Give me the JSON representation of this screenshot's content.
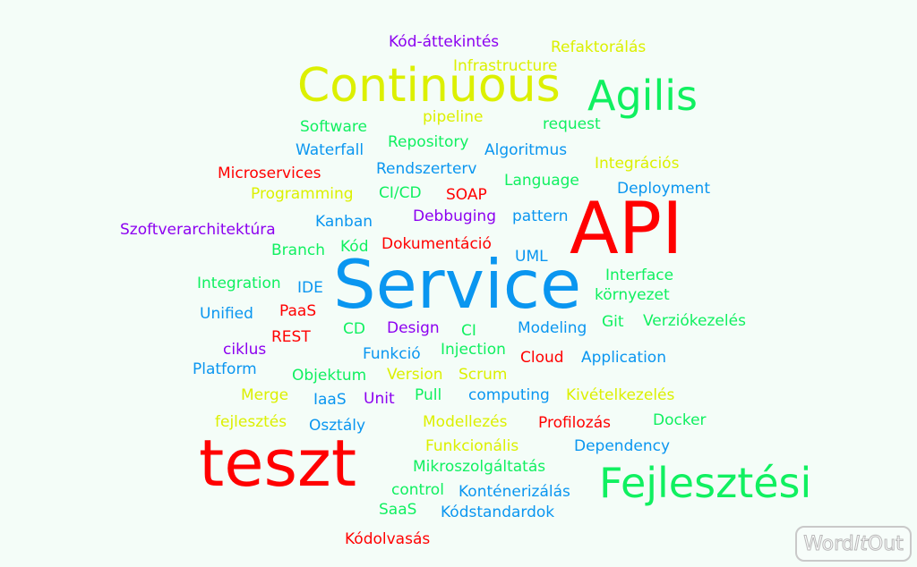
{
  "colors": {
    "red": "#ff0000",
    "blue": "#0a96f0",
    "green": "#10f060",
    "yellow": "#dcf000",
    "purple": "#8c00f0"
  },
  "words": [
    {
      "text": "Kód-áttekintés",
      "color": "purple"
    },
    {
      "text": "Refaktorálás",
      "color": "yellow"
    },
    {
      "text": "Infrastructure",
      "color": "yellow"
    },
    {
      "text": "Continuous",
      "color": "yellow"
    },
    {
      "text": "Agilis",
      "color": "green"
    },
    {
      "text": "pipeline",
      "color": "yellow"
    },
    {
      "text": "Software",
      "color": "green"
    },
    {
      "text": "request",
      "color": "green"
    },
    {
      "text": "Repository",
      "color": "green"
    },
    {
      "text": "Waterfall",
      "color": "blue"
    },
    {
      "text": "Algoritmus",
      "color": "blue"
    },
    {
      "text": "Integrációs",
      "color": "yellow"
    },
    {
      "text": "Microservices",
      "color": "red"
    },
    {
      "text": "Rendszerterv",
      "color": "blue"
    },
    {
      "text": "Language",
      "color": "green"
    },
    {
      "text": "Deployment",
      "color": "blue"
    },
    {
      "text": "Programming",
      "color": "yellow"
    },
    {
      "text": "CI/CD",
      "color": "green"
    },
    {
      "text": "SOAP",
      "color": "red"
    },
    {
      "text": "API",
      "color": "red"
    },
    {
      "text": "Kanban",
      "color": "blue"
    },
    {
      "text": "Debbuging",
      "color": "purple"
    },
    {
      "text": "pattern",
      "color": "blue"
    },
    {
      "text": "Szoftverarchitektúra",
      "color": "purple"
    },
    {
      "text": "Branch",
      "color": "green"
    },
    {
      "text": "Kód",
      "color": "green"
    },
    {
      "text": "Dokumentáció",
      "color": "red"
    },
    {
      "text": "UML",
      "color": "blue"
    },
    {
      "text": "Service",
      "color": "blue"
    },
    {
      "text": "Interface",
      "color": "green"
    },
    {
      "text": "Integration",
      "color": "green"
    },
    {
      "text": "IDE",
      "color": "blue"
    },
    {
      "text": "környezet",
      "color": "green"
    },
    {
      "text": "Unified",
      "color": "blue"
    },
    {
      "text": "PaaS",
      "color": "red"
    },
    {
      "text": "Git",
      "color": "green"
    },
    {
      "text": "Verziókezelés",
      "color": "green"
    },
    {
      "text": "CD",
      "color": "green"
    },
    {
      "text": "Design",
      "color": "purple"
    },
    {
      "text": "CI",
      "color": "green"
    },
    {
      "text": "Modeling",
      "color": "blue"
    },
    {
      "text": "REST",
      "color": "red"
    },
    {
      "text": "ciklus",
      "color": "purple"
    },
    {
      "text": "Injection",
      "color": "green"
    },
    {
      "text": "Funkció",
      "color": "blue"
    },
    {
      "text": "Cloud",
      "color": "red"
    },
    {
      "text": "Application",
      "color": "blue"
    },
    {
      "text": "Platform",
      "color": "blue"
    },
    {
      "text": "Objektum",
      "color": "green"
    },
    {
      "text": "Version",
      "color": "yellow"
    },
    {
      "text": "Scrum",
      "color": "yellow"
    },
    {
      "text": "Merge",
      "color": "yellow"
    },
    {
      "text": "IaaS",
      "color": "blue"
    },
    {
      "text": "Unit",
      "color": "purple"
    },
    {
      "text": "Pull",
      "color": "green"
    },
    {
      "text": "computing",
      "color": "blue"
    },
    {
      "text": "Kivételkezelés",
      "color": "yellow"
    },
    {
      "text": "fejlesztés",
      "color": "yellow"
    },
    {
      "text": "Osztály",
      "color": "blue"
    },
    {
      "text": "Modellezés",
      "color": "yellow"
    },
    {
      "text": "Profilozás",
      "color": "red"
    },
    {
      "text": "Docker",
      "color": "green"
    },
    {
      "text": "teszt",
      "color": "red"
    },
    {
      "text": "Funkcionális",
      "color": "yellow"
    },
    {
      "text": "Dependency",
      "color": "blue"
    },
    {
      "text": "Mikroszolgáltatás",
      "color": "green"
    },
    {
      "text": "Fejlesztési",
      "color": "green"
    },
    {
      "text": "control",
      "color": "green"
    },
    {
      "text": "Konténerizálás",
      "color": "blue"
    },
    {
      "text": "SaaS",
      "color": "green"
    },
    {
      "text": "Kódstandardok",
      "color": "blue"
    },
    {
      "text": "Kódolvasás",
      "color": "red"
    }
  ],
  "logo": {
    "part1": "Word",
    "part2": "It",
    "part3": "Out"
  }
}
